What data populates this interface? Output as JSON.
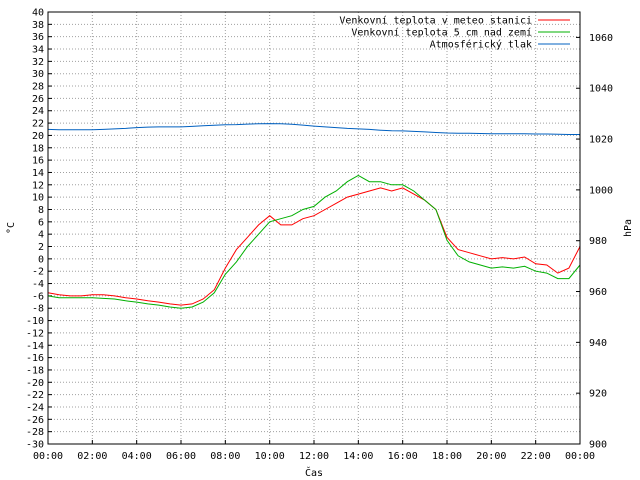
{
  "chart_data": {
    "type": "line",
    "xlabel": "Čas",
    "ylabel_left": "°C",
    "ylabel_right": "hPa",
    "x_ticks": [
      "00:00",
      "02:00",
      "04:00",
      "06:00",
      "08:00",
      "10:00",
      "12:00",
      "14:00",
      "16:00",
      "18:00",
      "20:00",
      "22:00",
      "00:00"
    ],
    "ylim_left": [
      -30,
      40
    ],
    "ylim_right": [
      900,
      1070
    ],
    "y_left_step": 2,
    "y_right_ticks": [
      900,
      920,
      940,
      960,
      980,
      1000,
      1020,
      1040,
      1060
    ],
    "grid": true,
    "legend_position": "top-right",
    "x_hours": [
      0,
      0.5,
      1,
      1.5,
      2,
      2.5,
      3,
      3.5,
      4,
      4.5,
      5,
      5.5,
      6,
      6.5,
      7,
      7.5,
      8,
      8.5,
      9,
      9.5,
      10,
      10.5,
      11,
      11.5,
      12,
      12.5,
      13,
      13.5,
      14,
      14.5,
      15,
      15.5,
      16,
      16.5,
      17,
      17.5,
      18,
      18.5,
      19,
      19.5,
      20,
      20.5,
      21,
      21.5,
      22,
      22.5,
      23,
      23.5,
      24
    ],
    "series": [
      {
        "name": "Venkovní teplota v meteo stanici",
        "color": "#ff0000",
        "axis": "left",
        "values": [
          -5.5,
          -5.8,
          -6,
          -6,
          -5.8,
          -5.8,
          -6,
          -6.3,
          -6.5,
          -6.8,
          -7,
          -7.3,
          -7.5,
          -7.3,
          -6.5,
          -5,
          -1.5,
          1.5,
          3.5,
          5.5,
          7,
          5.5,
          5.5,
          6.5,
          7,
          8,
          9,
          10,
          10.5,
          11,
          11.5,
          11,
          11.5,
          10.5,
          9.5,
          8,
          3.5,
          1.5,
          1,
          0.5,
          0,
          0.2,
          0,
          0.3,
          -0.8,
          -1,
          -2.3,
          -1.5,
          2
        ]
      },
      {
        "name": "Venkovní teplota 5 cm nad zemí",
        "color": "#00b000",
        "axis": "left",
        "values": [
          -6,
          -6.3,
          -6.3,
          -6.3,
          -6.3,
          -6.4,
          -6.5,
          -6.8,
          -7,
          -7.3,
          -7.5,
          -7.8,
          -8,
          -7.8,
          -7,
          -5.5,
          -2.5,
          -0.5,
          2,
          4,
          6,
          6.5,
          7,
          8,
          8.5,
          10,
          11,
          12.5,
          13.5,
          12.5,
          12.5,
          12,
          12,
          11,
          9.5,
          8,
          3,
          0.5,
          -0.5,
          -1,
          -1.5,
          -1.3,
          -1.5,
          -1.2,
          -2,
          -2.3,
          -3.2,
          -3.2,
          -1
        ]
      },
      {
        "name": "Atmosférický tlak",
        "color": "#0060c0",
        "axis": "right",
        "values": [
          1023.8,
          1023.7,
          1023.7,
          1023.7,
          1023.7,
          1023.8,
          1024,
          1024.2,
          1024.5,
          1024.7,
          1024.8,
          1024.8,
          1024.8,
          1025,
          1025.2,
          1025.4,
          1025.6,
          1025.7,
          1025.9,
          1026,
          1026.1,
          1026,
          1025.8,
          1025.5,
          1025.1,
          1024.8,
          1024.5,
          1024.2,
          1024,
          1023.8,
          1023.5,
          1023.3,
          1023.2,
          1023,
          1022.8,
          1022.6,
          1022.4,
          1022.3,
          1022.3,
          1022.2,
          1022.1,
          1022.1,
          1022.1,
          1022.1,
          1022,
          1022,
          1021.9,
          1021.8,
          1021.8
        ]
      }
    ]
  }
}
